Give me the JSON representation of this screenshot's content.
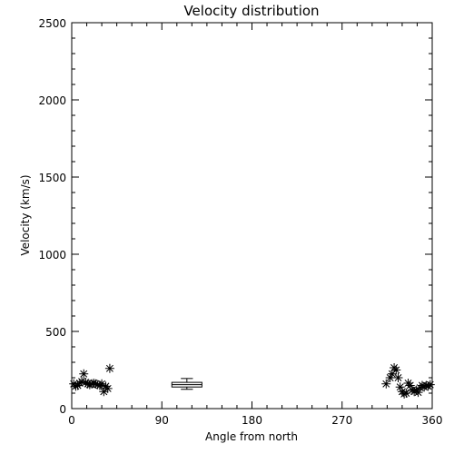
{
  "chart_data": {
    "type": "scatter",
    "title": "Velocity distribution",
    "xlabel": "Angle from north",
    "ylabel": "Velocity (km/s)",
    "xlim": [
      0,
      360
    ],
    "ylim": [
      0,
      2500
    ],
    "x_ticks": [
      0,
      90,
      180,
      270,
      360
    ],
    "y_ticks": [
      0,
      500,
      1000,
      1500,
      2000,
      2500
    ],
    "grid": false,
    "marker": "asterisk",
    "points": [
      {
        "x": 2,
        "y": 160
      },
      {
        "x": 4,
        "y": 145
      },
      {
        "x": 6,
        "y": 150
      },
      {
        "x": 8,
        "y": 165
      },
      {
        "x": 10,
        "y": 175
      },
      {
        "x": 12,
        "y": 225
      },
      {
        "x": 14,
        "y": 170
      },
      {
        "x": 16,
        "y": 160
      },
      {
        "x": 18,
        "y": 155
      },
      {
        "x": 20,
        "y": 160
      },
      {
        "x": 22,
        "y": 165
      },
      {
        "x": 24,
        "y": 160
      },
      {
        "x": 26,
        "y": 155
      },
      {
        "x": 28,
        "y": 150
      },
      {
        "x": 30,
        "y": 160
      },
      {
        "x": 32,
        "y": 110
      },
      {
        "x": 34,
        "y": 145
      },
      {
        "x": 36,
        "y": 130
      },
      {
        "x": 38,
        "y": 260
      },
      {
        "x": 314,
        "y": 160
      },
      {
        "x": 318,
        "y": 200
      },
      {
        "x": 320,
        "y": 225
      },
      {
        "x": 322,
        "y": 265
      },
      {
        "x": 324,
        "y": 250
      },
      {
        "x": 326,
        "y": 200
      },
      {
        "x": 328,
        "y": 140
      },
      {
        "x": 330,
        "y": 110
      },
      {
        "x": 332,
        "y": 95
      },
      {
        "x": 334,
        "y": 100
      },
      {
        "x": 336,
        "y": 165
      },
      {
        "x": 338,
        "y": 150
      },
      {
        "x": 340,
        "y": 120
      },
      {
        "x": 342,
        "y": 110
      },
      {
        "x": 344,
        "y": 120
      },
      {
        "x": 346,
        "y": 105
      },
      {
        "x": 348,
        "y": 135
      },
      {
        "x": 350,
        "y": 150
      },
      {
        "x": 352,
        "y": 140
      },
      {
        "x": 354,
        "y": 150
      },
      {
        "x": 356,
        "y": 145
      },
      {
        "x": 358,
        "y": 155
      }
    ],
    "box": {
      "x_center": 115,
      "x_halfwidth": 15,
      "cap_halfwidth": 6,
      "min": 125,
      "q1": 140,
      "median": 155,
      "q3": 170,
      "max": 195
    }
  }
}
